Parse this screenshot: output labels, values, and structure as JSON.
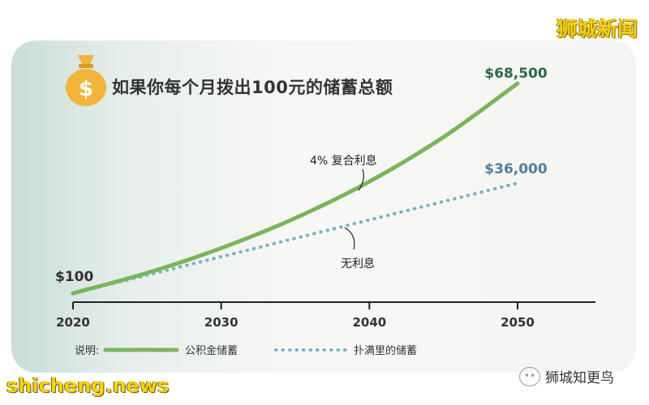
{
  "title": "如果你每个月拨出100元的储蓄总额",
  "watermark_top": "狮城新闻",
  "watermark_bottom": "shicheng.news",
  "wechat_account": "狮城知更鸟",
  "colors": {
    "compound": "#7ab55c",
    "no_interest": "#7ab2c4",
    "end_green": "#2e6a4a",
    "end_blue": "#4f7f9c",
    "axis": "#222222"
  },
  "chart_data": {
    "type": "line",
    "title": "如果你每个月拨出100元的储蓄总额",
    "x_ticks": [
      2020,
      2030,
      2040,
      2050
    ],
    "xlim": [
      2020,
      2050
    ],
    "series": [
      {
        "name": "公积金储蓄",
        "style": "solid",
        "annotation": "4% 复合利息",
        "end_label": "$68,500",
        "x": [
          2020,
          2025,
          2030,
          2035,
          2040,
          2045,
          2050
        ],
        "y": [
          100,
          6700,
          14800,
          24600,
          36500,
          51000,
          68500
        ]
      },
      {
        "name": "扑满里的储蓄",
        "style": "dotted",
        "annotation": "无利息",
        "end_label": "$36,000",
        "x": [
          2020,
          2025,
          2030,
          2035,
          2040,
          2045,
          2050
        ],
        "y": [
          100,
          6000,
          12000,
          18000,
          24000,
          30000,
          36000
        ]
      }
    ],
    "start_label": "$100",
    "legend_title": "说明:",
    "legend_position": "bottom"
  }
}
